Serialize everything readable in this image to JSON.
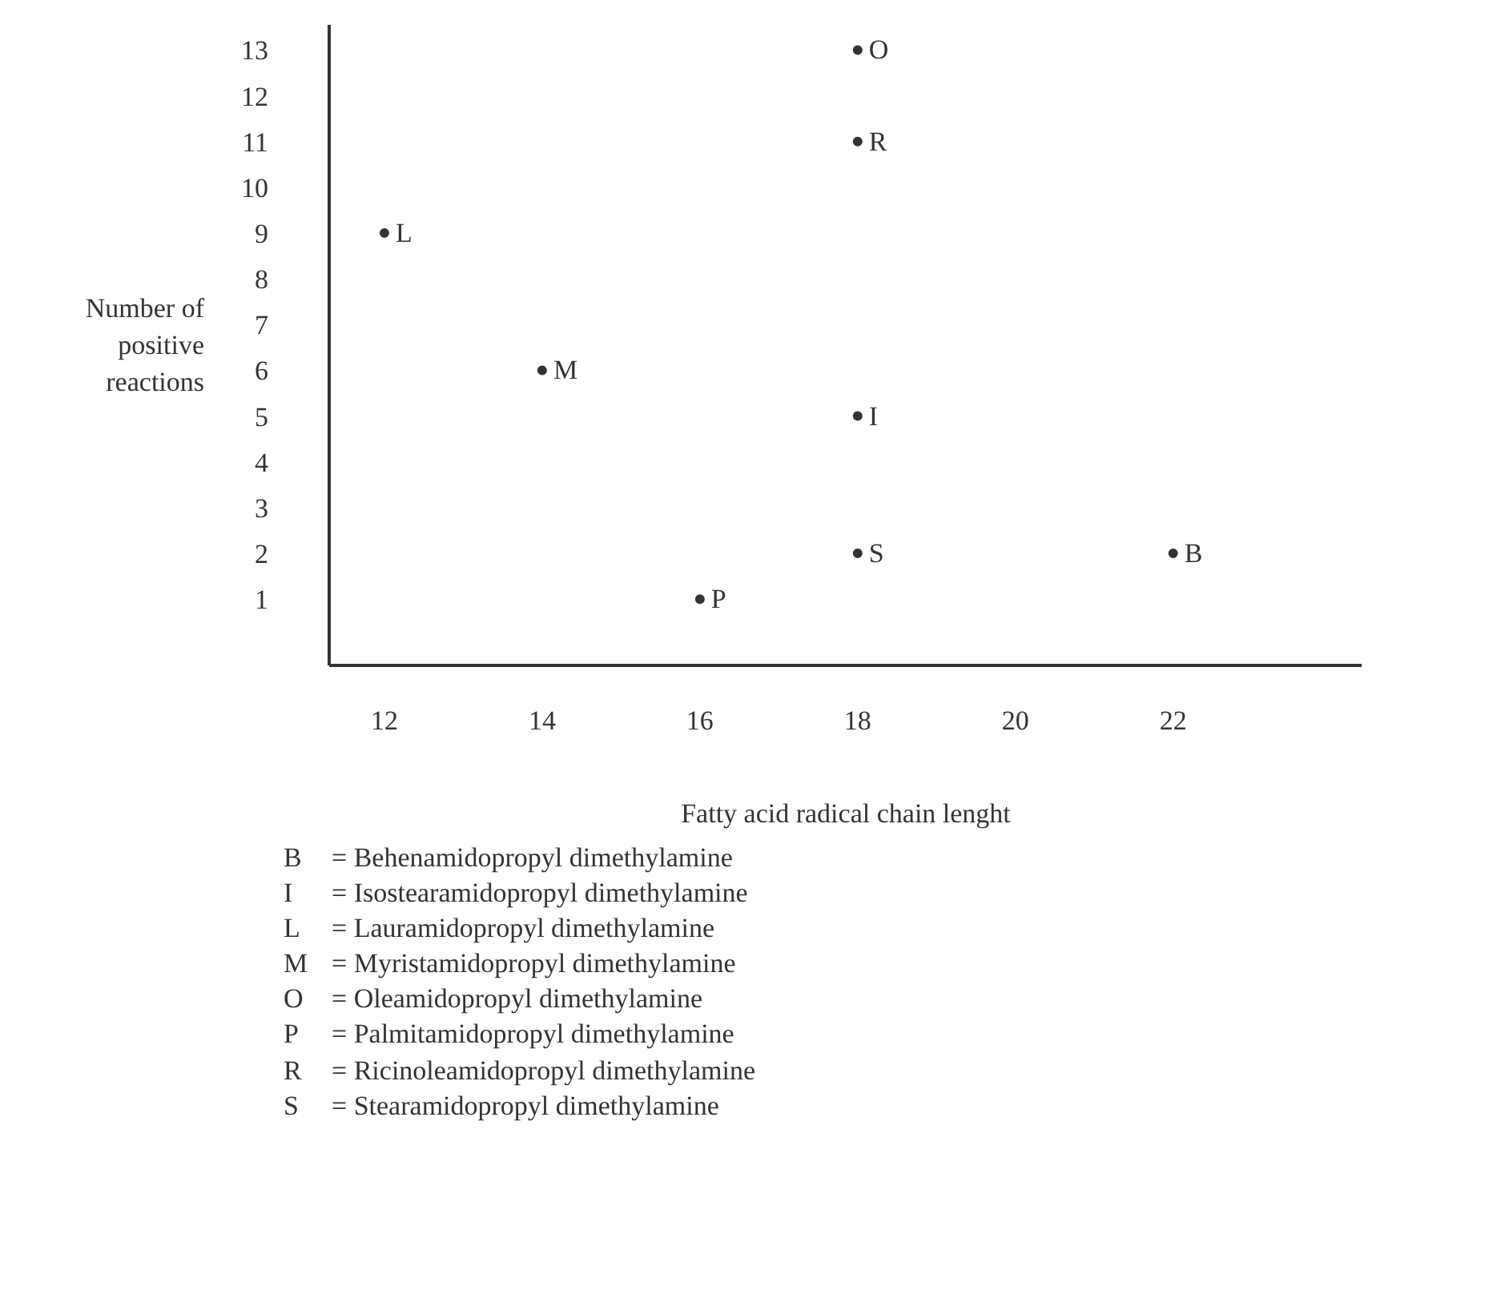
{
  "chart_data": {
    "type": "scatter",
    "xlabel": "Fatty acid radical chain lenght",
    "ylabel": "Number of positive reactions",
    "x": [
      12,
      14,
      16,
      18,
      18,
      18,
      18,
      22
    ],
    "values": [
      9,
      6,
      1,
      13,
      11,
      5,
      2,
      2
    ],
    "value_labels": [
      "L",
      "M",
      "P",
      "O",
      "R",
      "I",
      "S",
      "B"
    ],
    "marker": "circle",
    "color": "#333333",
    "xlim": [
      11.3,
      24.4
    ],
    "ylim": [
      -0.45,
      13.55
    ],
    "xticks": [
      12,
      14,
      16,
      18,
      20,
      22
    ],
    "yticks": [
      1,
      2,
      3,
      4,
      5,
      6,
      7,
      8,
      9,
      10,
      11,
      12,
      13
    ],
    "grid": false,
    "annotations": [
      "B = Behenamidopropyl dimethylamine",
      "I = Isostearamidopropyl dimethylamine",
      "L = Lauramidopropyl dimethylamine",
      "M = Myristamidopropyl dimethylamine",
      "O = Oleamidopropyl dimethylamine",
      "P = Palmitamidopropyl dimethylamine",
      "R = Ricinoleamidopropyl dimethylamine",
      "S = Stearamidopropyl dimethylamine"
    ]
  }
}
